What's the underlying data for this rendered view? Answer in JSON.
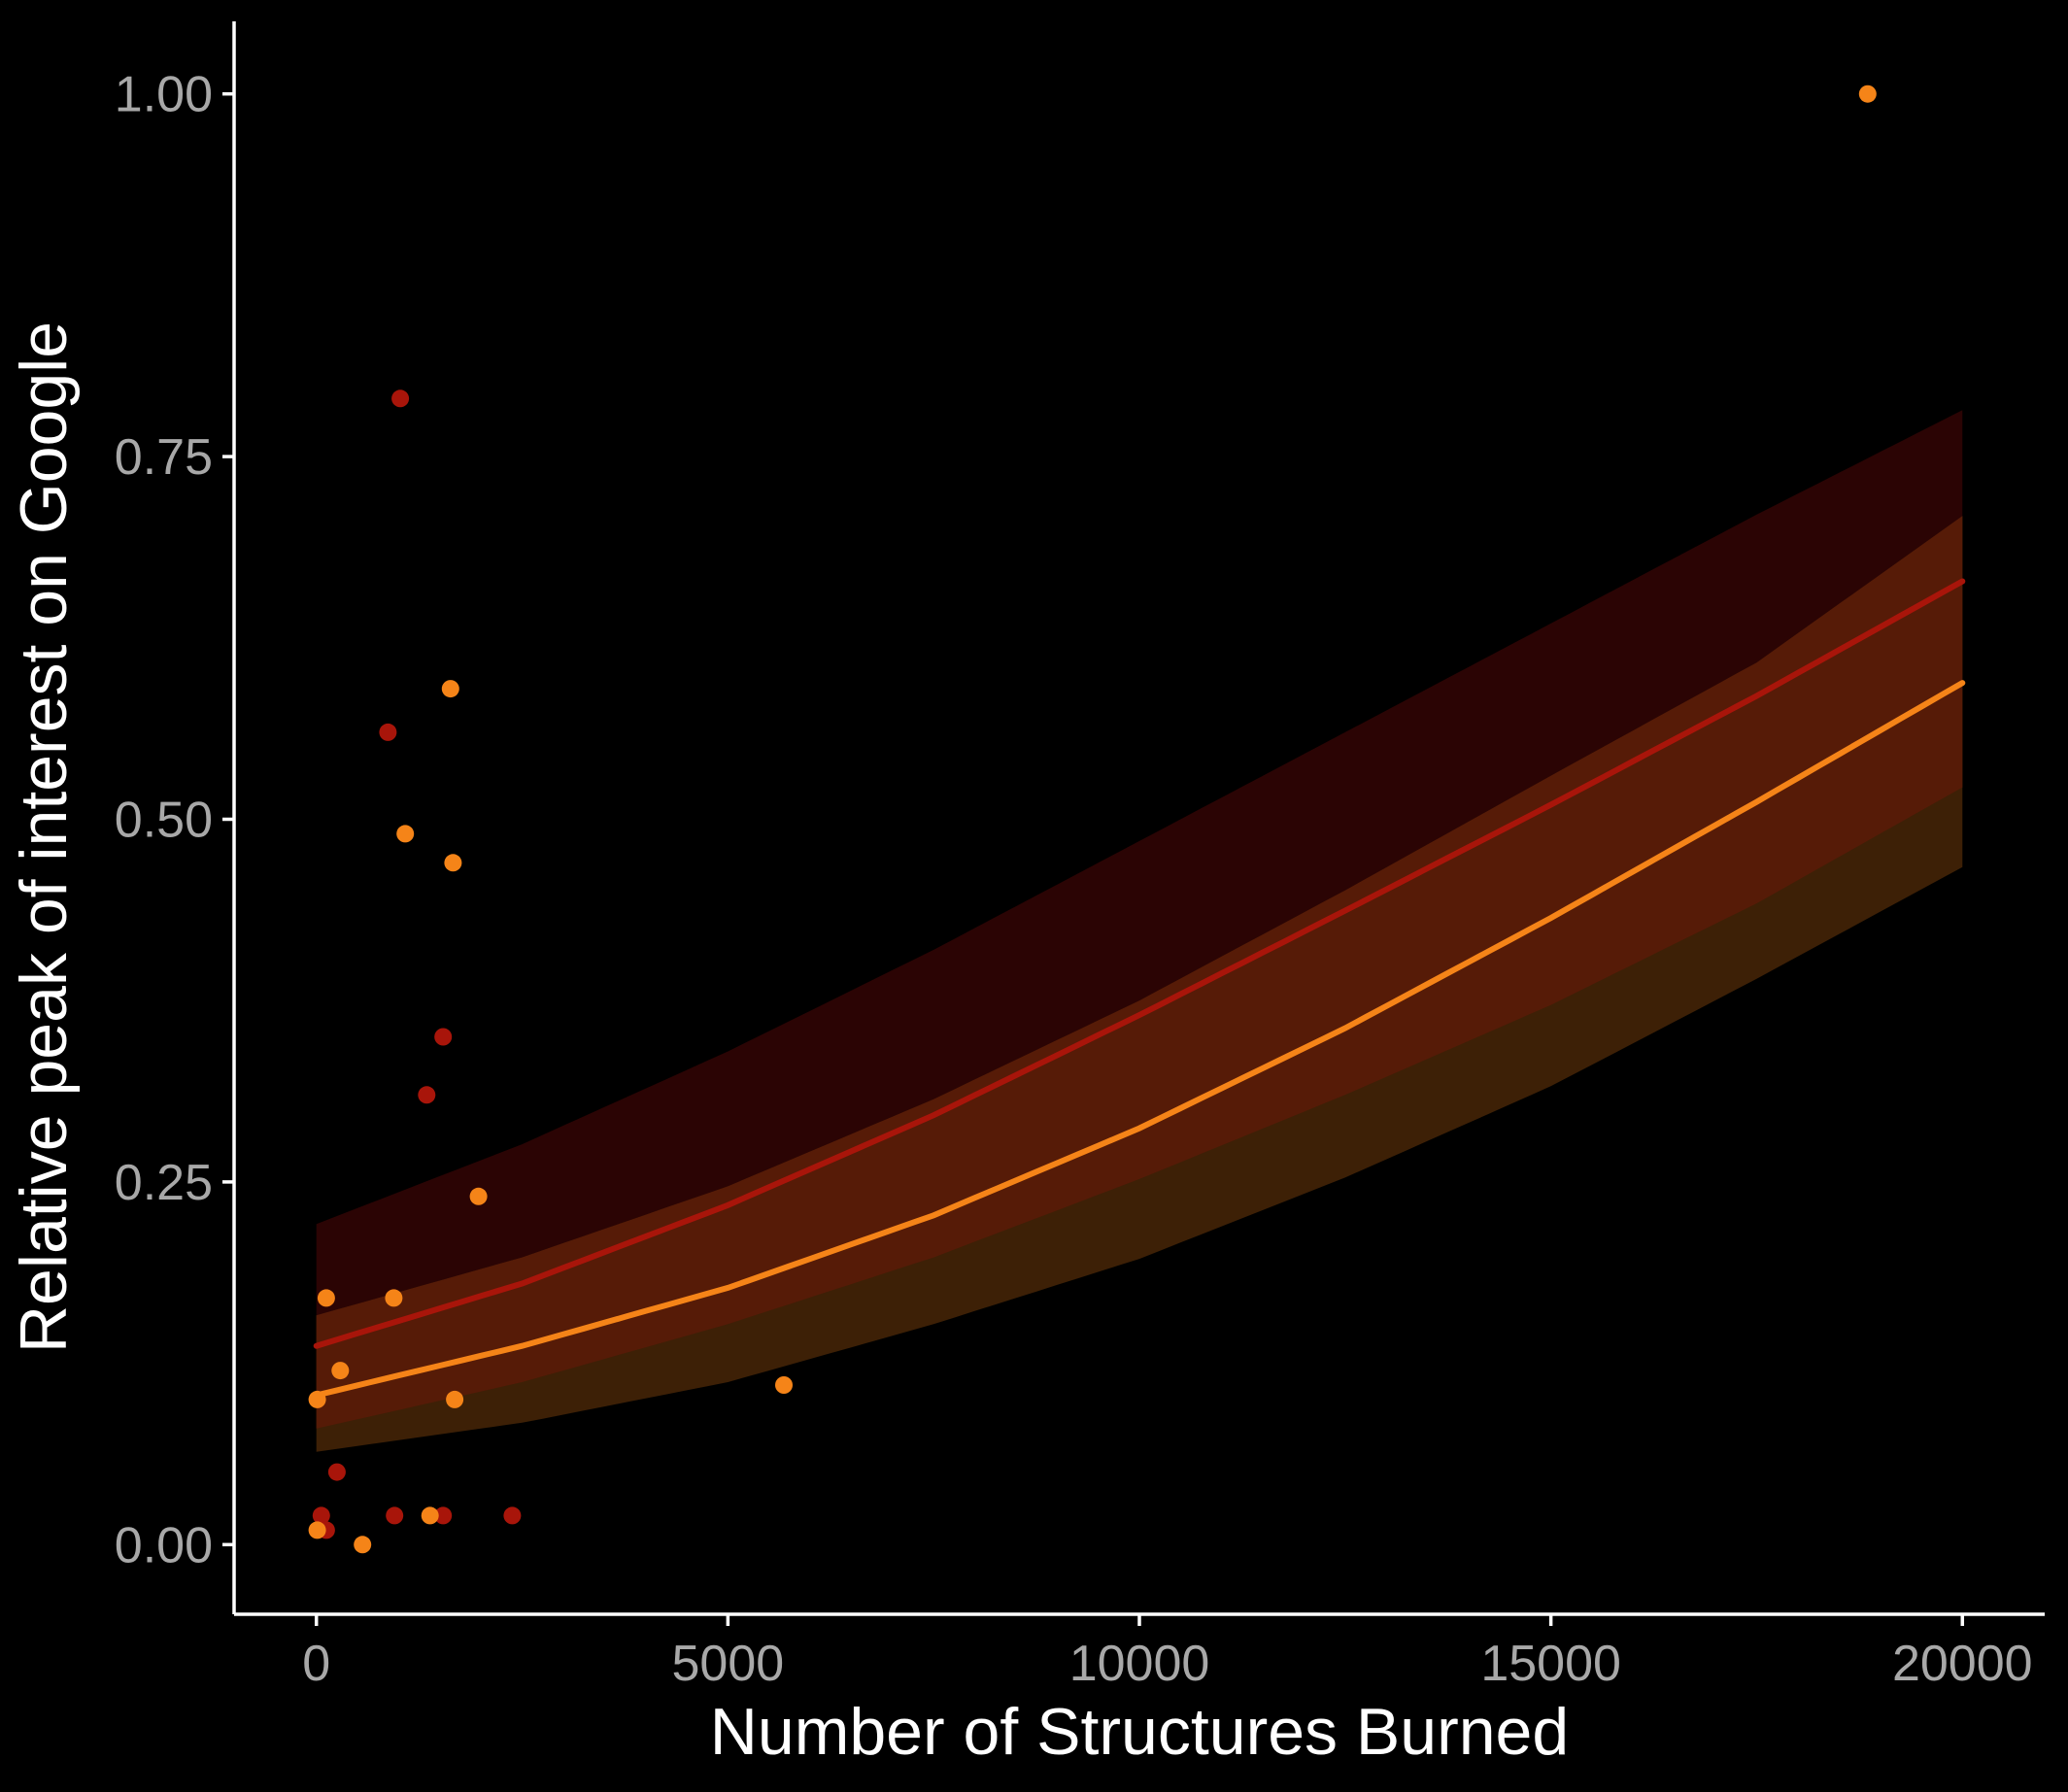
{
  "chart_data": {
    "type": "scatter",
    "xlabel": "Number of Structures Burned",
    "ylabel": "Relative peak of interest on Google",
    "xlim": [
      -1000,
      21000
    ],
    "ylim": [
      -0.048,
      1.05
    ],
    "x_ticks": [
      0,
      5000,
      10000,
      15000,
      20000
    ],
    "x_tick_labels": [
      "0",
      "5000",
      "10000",
      "15000",
      "20000"
    ],
    "y_ticks": [
      0,
      0.25,
      0.5,
      0.75,
      1.0
    ],
    "y_tick_labels": [
      "0.00",
      "0.25",
      "0.50",
      "0.75",
      "1.00"
    ],
    "grid": false,
    "legend": "none",
    "colors": {
      "background": "#000000",
      "red_series": "#a8150a",
      "orange_series": "#f58418",
      "red_band": "#2b0404",
      "orange_band": "#3d2006",
      "band_overlap": "#561b07"
    },
    "series": [
      {
        "color": "#a8150a",
        "points": [
          [
            1020,
            0.79
          ],
          [
            870,
            0.56
          ],
          [
            1540,
            0.35
          ],
          [
            1340,
            0.31
          ],
          [
            250,
            0.05
          ],
          [
            60,
            0.02
          ],
          [
            120,
            0.01
          ],
          [
            950,
            0.02
          ],
          [
            1540,
            0.02
          ],
          [
            2380,
            0.02
          ]
        ],
        "fit": {
          "x": [
            0,
            2500,
            5000,
            7500,
            10000,
            12500,
            15000,
            17500,
            20000
          ],
          "y": [
            0.137,
            0.18,
            0.234,
            0.296,
            0.365,
            0.437,
            0.51,
            0.585,
            0.664
          ],
          "lower": [
            0.08,
            0.112,
            0.152,
            0.198,
            0.252,
            0.31,
            0.372,
            0.442,
            0.522
          ],
          "upper": [
            0.221,
            0.276,
            0.34,
            0.41,
            0.485,
            0.56,
            0.635,
            0.71,
            0.782
          ]
        }
      },
      {
        "color": "#f58418",
        "points": [
          [
            18850,
            1.0
          ],
          [
            1630,
            0.59
          ],
          [
            1080,
            0.49
          ],
          [
            1660,
            0.47
          ],
          [
            1970,
            0.24
          ],
          [
            120,
            0.17
          ],
          [
            940,
            0.17
          ],
          [
            290,
            0.12
          ],
          [
            10,
            0.1
          ],
          [
            1680,
            0.1
          ],
          [
            5680,
            0.11
          ],
          [
            10,
            0.01
          ],
          [
            560,
            0.0
          ],
          [
            1380,
            0.02
          ]
        ],
        "fit": {
          "x": [
            0,
            2500,
            5000,
            7500,
            10000,
            12500,
            15000,
            17500,
            20000
          ],
          "y": [
            0.103,
            0.137,
            0.177,
            0.227,
            0.287,
            0.356,
            0.432,
            0.512,
            0.594
          ],
          "lower": [
            0.064,
            0.084,
            0.112,
            0.152,
            0.197,
            0.253,
            0.316,
            0.39,
            0.467
          ],
          "upper": [
            0.158,
            0.198,
            0.247,
            0.307,
            0.375,
            0.451,
            0.53,
            0.608,
            0.709
          ]
        }
      }
    ]
  }
}
